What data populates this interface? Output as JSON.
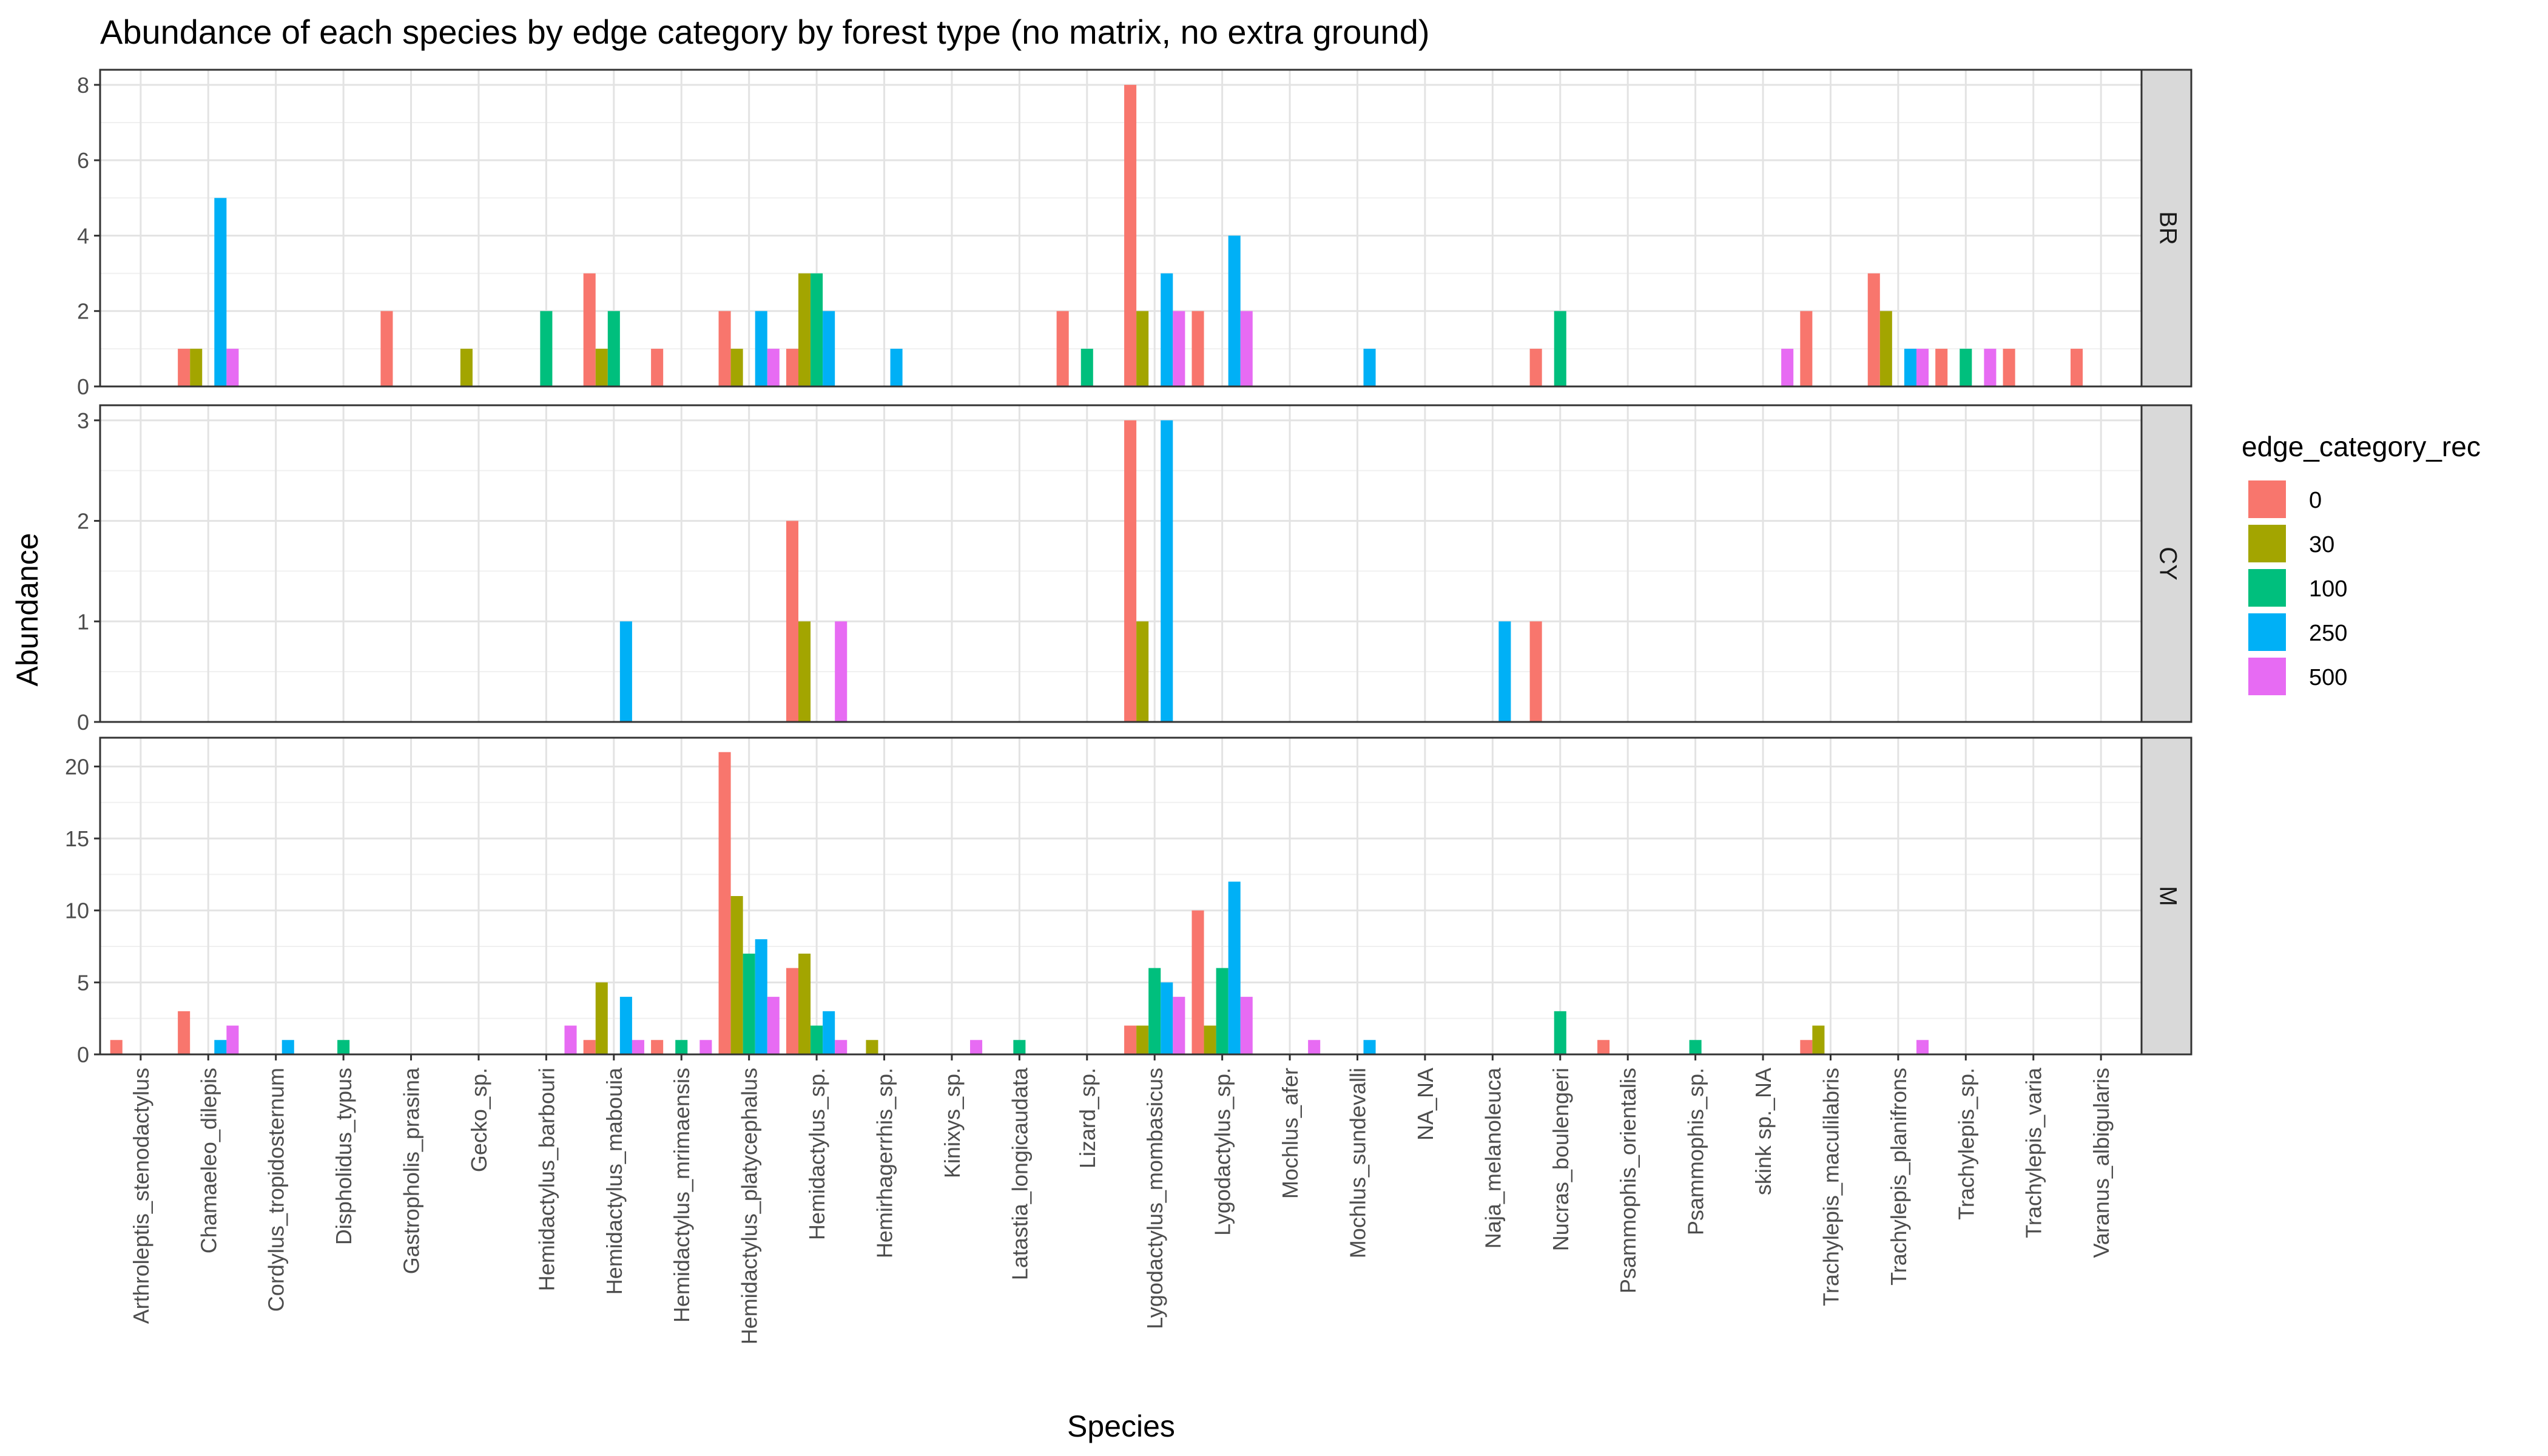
{
  "chart_data": {
    "type": "bar",
    "title": "Abundance of each species by edge category by forest type (no matrix, no extra ground)",
    "xlabel": "Species",
    "ylabel": "Abundance",
    "legend": {
      "title": "edge_category_rec",
      "placement": "right",
      "entries": [
        {
          "label": "0",
          "color": "#F8766D"
        },
        {
          "label": "30",
          "color": "#A3A500"
        },
        {
          "label": "100",
          "color": "#00BF7D"
        },
        {
          "label": "250",
          "color": "#00B0F6"
        },
        {
          "label": "500",
          "color": "#E76BF3"
        }
      ]
    },
    "categories": [
      "Arthroleptis_stenodactylus",
      "Chamaeleo_dilepis",
      "Cordylus_tropidosternum",
      "Dispholidus_typus",
      "Gastropholis_prasina",
      "Gecko_sp.",
      "Hemidactylus_barbouri",
      "Hemidactylus_mabouia",
      "Hemidactylus_mrimaensis",
      "Hemidactylus_platycephalus",
      "Hemidactylus_sp.",
      "Hemirhagerrhis_sp.",
      "Kinixys_sp.",
      "Latastia_longicaudata",
      "Lizard_sp.",
      "Lygodactylus_mombasicus",
      "Lygodactylus_sp.",
      "Mochlus_afer",
      "Mochlus_sundevalli",
      "NA_NA",
      "Naja_melanoleuca",
      "Nucras_boulengeri",
      "Psammophis_orientalis",
      "Psammophis_sp.",
      "skink sp._NA",
      "Trachylepis_maculilabris",
      "Trachylepis_planifrons",
      "Trachylepis_sp.",
      "Trachylepis_varia",
      "Varanus_albigularis"
    ],
    "grid": true,
    "facets": [
      {
        "label": "BR",
        "ylim": [
          0,
          8.4
        ],
        "yticks": [
          0,
          2,
          4,
          6,
          8
        ],
        "bars": [
          [
            1,
            0,
            1
          ],
          [
            1,
            1,
            1
          ],
          [
            1,
            3,
            5
          ],
          [
            1,
            4,
            1
          ],
          [
            4,
            0,
            2
          ],
          [
            5,
            1,
            1
          ],
          [
            6,
            2,
            2
          ],
          [
            7,
            0,
            3
          ],
          [
            7,
            1,
            1
          ],
          [
            7,
            2,
            2
          ],
          [
            8,
            0,
            1
          ],
          [
            9,
            0,
            2
          ],
          [
            9,
            1,
            1
          ],
          [
            9,
            3,
            2
          ],
          [
            9,
            4,
            1
          ],
          [
            10,
            0,
            1
          ],
          [
            10,
            1,
            3
          ],
          [
            10,
            2,
            3
          ],
          [
            10,
            3,
            2
          ],
          [
            11,
            3,
            1
          ],
          [
            14,
            0,
            2
          ],
          [
            14,
            2,
            1
          ],
          [
            15,
            0,
            8
          ],
          [
            15,
            1,
            2
          ],
          [
            15,
            3,
            3
          ],
          [
            15,
            4,
            2
          ],
          [
            16,
            0,
            2
          ],
          [
            16,
            3,
            4
          ],
          [
            16,
            4,
            2
          ],
          [
            18,
            3,
            1
          ],
          [
            21,
            0,
            1
          ],
          [
            21,
            2,
            2
          ],
          [
            24,
            4,
            1
          ],
          [
            25,
            0,
            2
          ],
          [
            26,
            0,
            3
          ],
          [
            26,
            1,
            2
          ],
          [
            26,
            3,
            1
          ],
          [
            26,
            4,
            1
          ],
          [
            27,
            0,
            1
          ],
          [
            27,
            2,
            1
          ],
          [
            27,
            4,
            1
          ],
          [
            28,
            0,
            1
          ],
          [
            29,
            0,
            1
          ]
        ]
      },
      {
        "label": "CY",
        "ylim": [
          0,
          3.15
        ],
        "yticks": [
          0,
          1,
          2,
          3
        ],
        "bars": [
          [
            7,
            3,
            1
          ],
          [
            10,
            0,
            2
          ],
          [
            10,
            1,
            1
          ],
          [
            10,
            4,
            1
          ],
          [
            15,
            0,
            3
          ],
          [
            15,
            1,
            1
          ],
          [
            15,
            3,
            3
          ],
          [
            20,
            3,
            1
          ],
          [
            21,
            0,
            1
          ]
        ]
      },
      {
        "label": "M",
        "ylim": [
          0,
          22
        ],
        "yticks": [
          0,
          5,
          10,
          15,
          20
        ],
        "bars": [
          [
            0,
            0,
            1
          ],
          [
            1,
            0,
            3
          ],
          [
            1,
            3,
            1
          ],
          [
            1,
            4,
            2
          ],
          [
            2,
            3,
            1
          ],
          [
            3,
            2,
            1
          ],
          [
            6,
            4,
            2
          ],
          [
            7,
            0,
            1
          ],
          [
            7,
            1,
            5
          ],
          [
            7,
            3,
            4
          ],
          [
            7,
            4,
            1
          ],
          [
            8,
            0,
            1
          ],
          [
            8,
            2,
            1
          ],
          [
            8,
            4,
            1
          ],
          [
            9,
            0,
            21
          ],
          [
            9,
            1,
            11
          ],
          [
            9,
            2,
            7
          ],
          [
            9,
            3,
            8
          ],
          [
            9,
            4,
            4
          ],
          [
            10,
            0,
            6
          ],
          [
            10,
            1,
            7
          ],
          [
            10,
            2,
            2
          ],
          [
            10,
            3,
            3
          ],
          [
            10,
            4,
            1
          ],
          [
            11,
            1,
            1
          ],
          [
            12,
            4,
            1
          ],
          [
            13,
            2,
            1
          ],
          [
            15,
            0,
            2
          ],
          [
            15,
            1,
            2
          ],
          [
            15,
            2,
            6
          ],
          [
            15,
            3,
            5
          ],
          [
            15,
            4,
            4
          ],
          [
            16,
            0,
            10
          ],
          [
            16,
            1,
            2
          ],
          [
            16,
            2,
            6
          ],
          [
            16,
            3,
            12
          ],
          [
            16,
            4,
            4
          ],
          [
            17,
            4,
            1
          ],
          [
            18,
            3,
            1
          ],
          [
            21,
            2,
            3
          ],
          [
            22,
            0,
            1
          ],
          [
            23,
            2,
            1
          ],
          [
            25,
            0,
            1
          ],
          [
            25,
            1,
            2
          ],
          [
            26,
            4,
            1
          ]
        ]
      }
    ]
  }
}
